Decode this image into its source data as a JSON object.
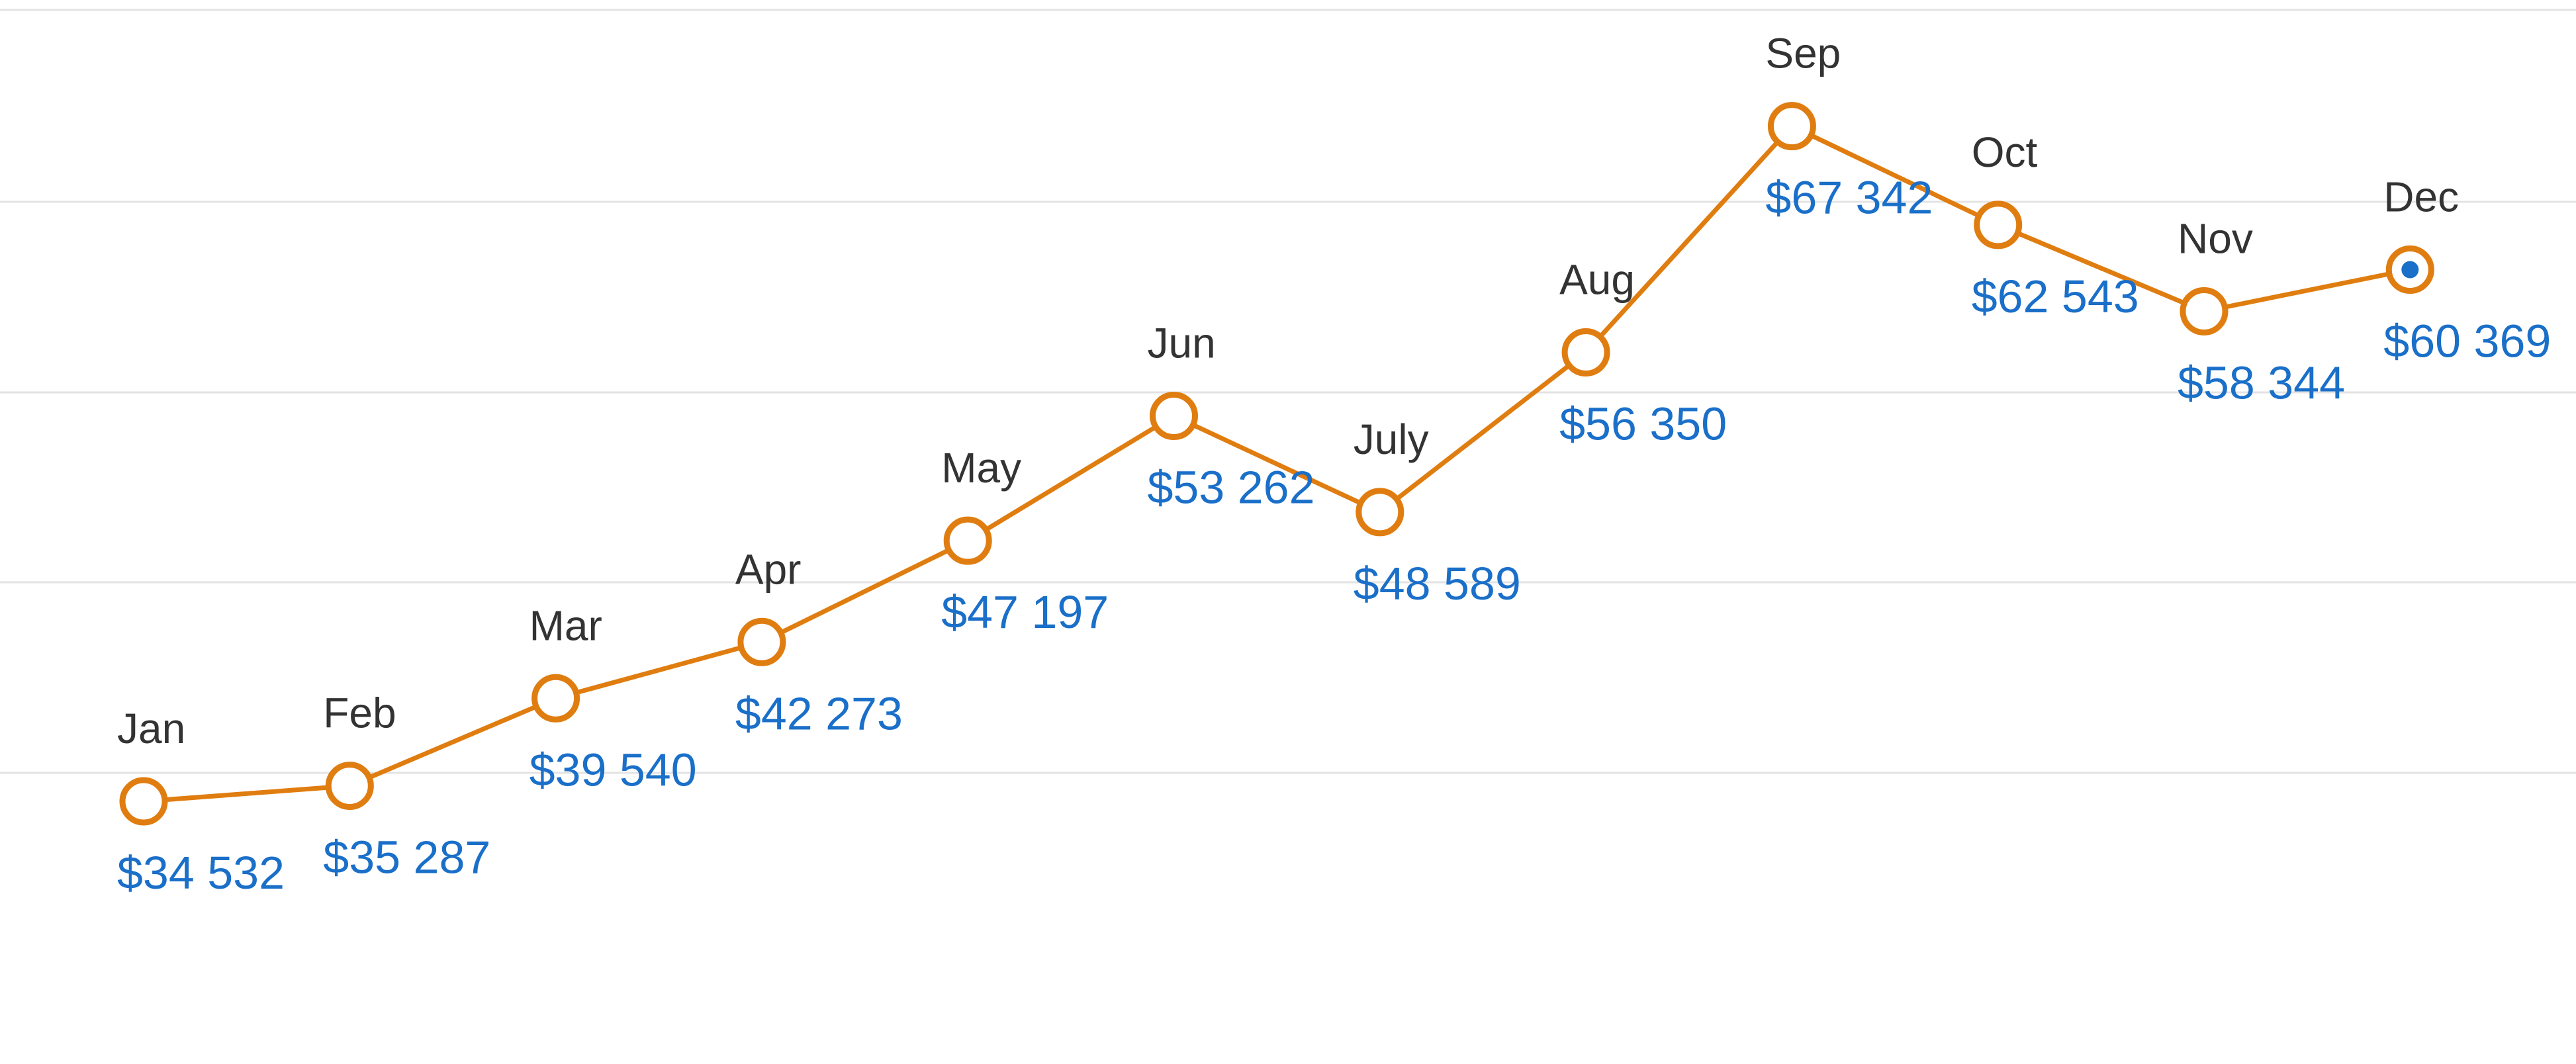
{
  "colors": {
    "series": "#e07d10",
    "value_label": "#1a6fc9",
    "month_label": "#333333",
    "grid": "#e3e3e3",
    "highlight_dot": "#1a6fc9"
  },
  "chart_data": {
    "type": "line",
    "categories": [
      "Jan",
      "Feb",
      "Mar",
      "Apr",
      "May",
      "Jun",
      "July",
      "Aug",
      "Sep",
      "Oct",
      "Nov",
      "Dec"
    ],
    "series": [
      {
        "values": [
          34532,
          35287,
          39540,
          42273,
          47197,
          53262,
          48589,
          56350,
          67342,
          62543,
          58344,
          60369
        ]
      }
    ],
    "value_labels": [
      "$34 532",
      "$35 287",
      "$39 540",
      "$42 273",
      "$47 197",
      "$53 262",
      "$48 589",
      "$56 350",
      "$67 342",
      "$62 543",
      "$58 344",
      "$60 369"
    ],
    "highlighted_point": "Dec",
    "grid": true,
    "title": "",
    "xlabel": "",
    "ylabel": ""
  }
}
